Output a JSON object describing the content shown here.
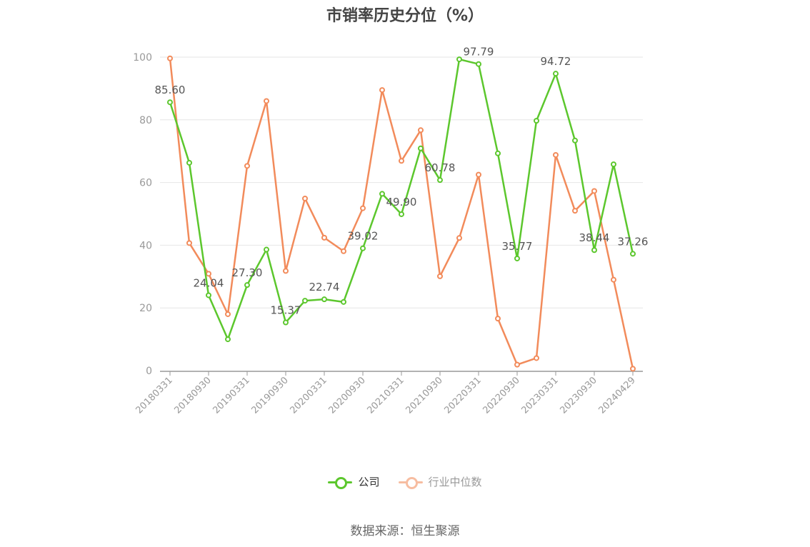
{
  "chart_data": {
    "type": "line",
    "title": "市销率历史分位（%）",
    "x": [
      "20180331",
      "20180630",
      "20180930",
      "20181231",
      "20190331",
      "20190630",
      "20190930",
      "20191231",
      "20200331",
      "20200630",
      "20200930",
      "20201231",
      "20210331",
      "20210630",
      "20210930",
      "20211231",
      "20220331",
      "20220630",
      "20220930",
      "20221231",
      "20230331",
      "20230630",
      "20230930",
      "20231231",
      "20240429"
    ],
    "x_tick_labels": [
      "20180331",
      "20180930",
      "20190331",
      "20190930",
      "20200331",
      "20200930",
      "20210331",
      "20210930",
      "20220331",
      "20220930",
      "20230331",
      "20230930",
      "20240429"
    ],
    "ylim": [
      0,
      100
    ],
    "y_ticks": [
      0,
      20,
      40,
      60,
      80,
      100
    ],
    "grid": true,
    "legend_position": "bottom",
    "series": [
      {
        "name": "公司",
        "color": "#5cc72d",
        "values": [
          85.6,
          66.3,
          24.04,
          10.0,
          27.3,
          38.6,
          15.37,
          22.3,
          22.74,
          21.9,
          39.02,
          56.4,
          49.9,
          70.9,
          60.78,
          99.3,
          97.79,
          69.3,
          35.77,
          79.7,
          94.72,
          73.4,
          38.44,
          65.8,
          37.26
        ],
        "data_labels": [
          {
            "index": 0,
            "text": "85.60"
          },
          {
            "index": 2,
            "text": "24.04"
          },
          {
            "index": 4,
            "text": "27.30"
          },
          {
            "index": 6,
            "text": "15.37"
          },
          {
            "index": 8,
            "text": "22.74"
          },
          {
            "index": 10,
            "text": "39.02"
          },
          {
            "index": 12,
            "text": "49.90"
          },
          {
            "index": 14,
            "text": "60.78"
          },
          {
            "index": 16,
            "text": "97.79"
          },
          {
            "index": 18,
            "text": "35.77"
          },
          {
            "index": 20,
            "text": "94.72"
          },
          {
            "index": 22,
            "text": "38.44"
          },
          {
            "index": 24,
            "text": "37.26"
          }
        ]
      },
      {
        "name": "行业中位数",
        "color": "#f28b5b",
        "values": [
          99.6,
          40.7,
          30.9,
          18.0,
          65.3,
          86.0,
          31.8,
          54.9,
          42.4,
          38.1,
          51.8,
          89.5,
          66.9,
          76.7,
          30.1,
          42.3,
          62.5,
          16.6,
          1.9,
          4.0,
          68.8,
          51.0,
          57.3,
          29.0,
          0.6
        ]
      }
    ]
  },
  "legend": {
    "items": [
      {
        "label": "公司",
        "color": "#5cc72d",
        "state": "active"
      },
      {
        "label": "行业中位数",
        "color": "#f7bda1",
        "state": "dim"
      }
    ]
  },
  "source": "数据来源：恒生聚源"
}
